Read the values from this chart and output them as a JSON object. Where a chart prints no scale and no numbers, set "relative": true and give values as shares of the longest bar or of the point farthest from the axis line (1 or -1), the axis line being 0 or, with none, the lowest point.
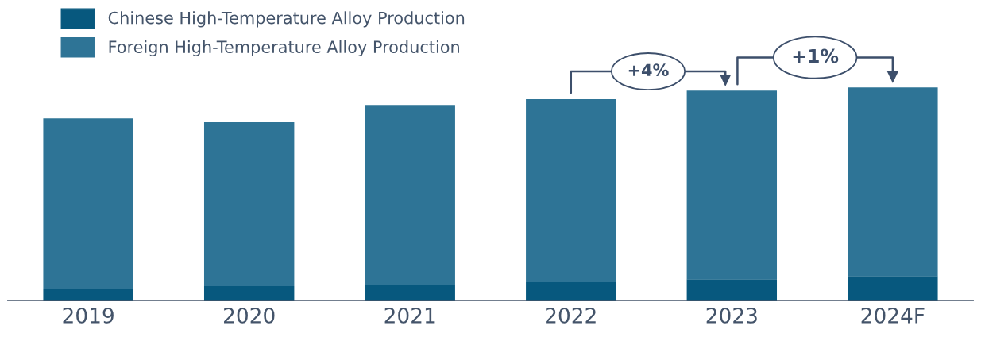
{
  "chart_data": {
    "type": "bar",
    "stacked": true,
    "relative": true,
    "legend": "top left",
    "categories": [
      "2019",
      "2020",
      "2021",
      "2022",
      "2023",
      "2024F"
    ],
    "series": [
      {
        "name": "Chinese High-Temperature Alloy Production",
        "color": "#07587e",
        "values": [
          0.056,
          0.067,
          0.074,
          0.086,
          0.1,
          0.115
        ]
      },
      {
        "name": "Foreign High-Temperature Alloy Production",
        "color": "#2e7496",
        "values": [
          0.799,
          0.77,
          0.84,
          0.859,
          0.885,
          0.885
        ]
      }
    ],
    "annotations": [
      "+4%",
      "+1%"
    ]
  }
}
